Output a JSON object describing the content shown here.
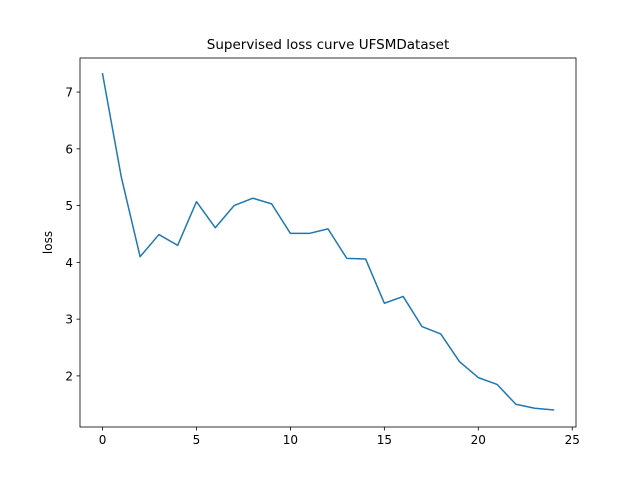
{
  "chart_data": {
    "type": "line",
    "title": "Supervised loss curve UFSMDataset",
    "xlabel": "",
    "ylabel": "loss",
    "xlim": [
      -1.2,
      25.2
    ],
    "ylim": [
      1.1,
      7.6
    ],
    "xticks": [
      0,
      5,
      10,
      15,
      20,
      25
    ],
    "yticks": [
      2,
      3,
      4,
      5,
      6,
      7
    ],
    "grid": false,
    "series": [
      {
        "color": "#1f77b4",
        "x": [
          0,
          1,
          2,
          3,
          4,
          5,
          6,
          7,
          8,
          9,
          10,
          11,
          12,
          13,
          14,
          15,
          16,
          17,
          18,
          19,
          20,
          21,
          22,
          23,
          24
        ],
        "y": [
          7.32,
          5.5,
          4.1,
          4.49,
          4.3,
          5.07,
          4.61,
          5.0,
          5.13,
          5.03,
          4.51,
          4.51,
          4.59,
          4.07,
          4.06,
          3.28,
          3.4,
          2.87,
          2.74,
          2.25,
          1.97,
          1.85,
          1.5,
          1.43,
          1.4
        ]
      }
    ]
  }
}
